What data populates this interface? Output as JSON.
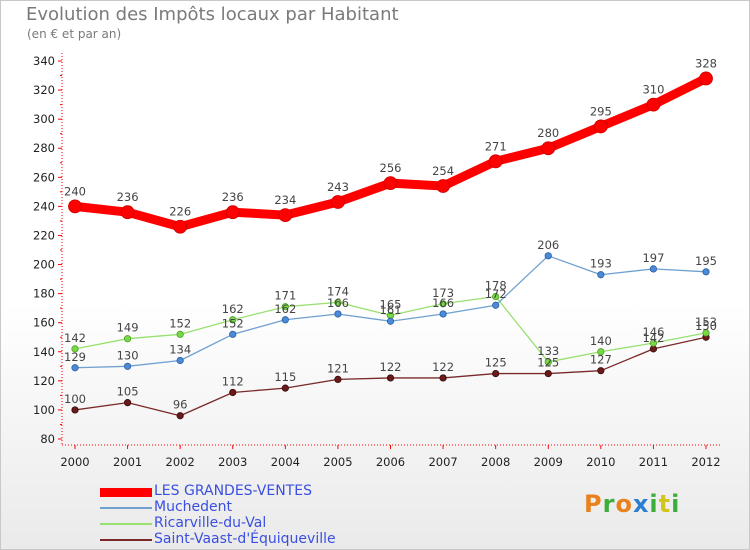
{
  "header": {
    "title": "Evolution des Impôts locaux par Habitant",
    "subtitle": "(en € et par an)"
  },
  "brand": {
    "text": "Proxiti",
    "colors": [
      "#e8821e",
      "#3cae3c",
      "#e8821e",
      "#2a7fd4",
      "#3cae3c",
      "#d4c41e",
      "#3cae3c"
    ]
  },
  "chart_data": {
    "type": "line",
    "title": "Evolution des Impôts locaux par Habitant",
    "subtitle": "(en € et par an)",
    "xlabel": "",
    "ylabel": "",
    "ylim": [
      80,
      340
    ],
    "yticks": [
      80,
      100,
      120,
      140,
      160,
      180,
      200,
      220,
      240,
      260,
      280,
      300,
      320,
      340
    ],
    "grid": false,
    "legend_position": "bottom-left",
    "x": [
      "2000",
      "2001",
      "2002",
      "2003",
      "2004",
      "2005",
      "2006",
      "2007",
      "2008",
      "2009",
      "2010",
      "2011",
      "2012"
    ],
    "series": [
      {
        "name": "LES GRANDES-VENTES",
        "color": "#ff0000",
        "values": [
          240,
          236,
          226,
          236,
          234,
          243,
          256,
          254,
          271,
          280,
          295,
          310,
          328
        ]
      },
      {
        "name": "Muchedent",
        "color": "#6fa0d0",
        "values": [
          129,
          130,
          134,
          152,
          162,
          166,
          161,
          166,
          172,
          206,
          193,
          197,
          195
        ]
      },
      {
        "name": "Ricarville-du-Val",
        "color": "#98e070",
        "values": [
          142,
          149,
          152,
          162,
          171,
          174,
          165,
          173,
          178,
          133,
          140,
          146,
          153
        ]
      },
      {
        "name": "Saint-Vaast-d'Équiqueville",
        "color": "#7a2a2a",
        "values": [
          100,
          105,
          96,
          112,
          115,
          121,
          122,
          122,
          125,
          125,
          127,
          142,
          150
        ]
      }
    ]
  }
}
